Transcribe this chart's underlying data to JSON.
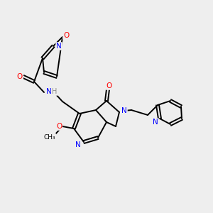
{
  "bg_color": "#eeeeee",
  "bond_color": "#000000",
  "atom_colors": {
    "N": "#0000ff",
    "O": "#ff0000",
    "H": "#888888",
    "C": "#000000"
  },
  "figsize": [
    3.0,
    3.0
  ],
  "dpi": 100
}
